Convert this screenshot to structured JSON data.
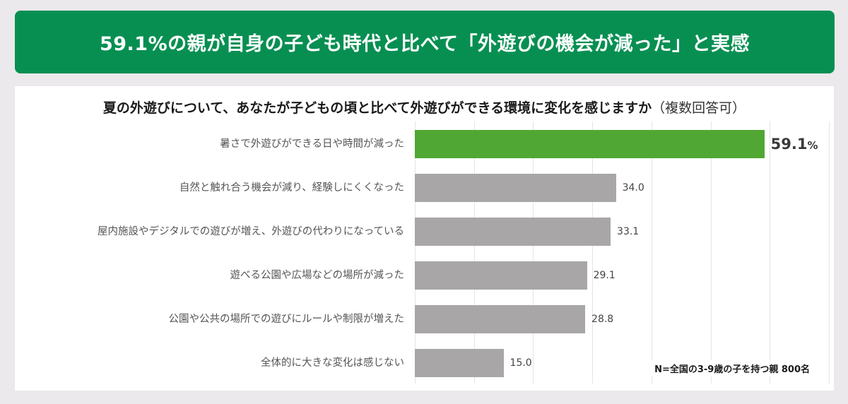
{
  "header": {
    "title": "59.1%の親が自身の子ども時代と比べて「外遊びの機会が減った」と実感",
    "background": "#078f52"
  },
  "chart_data": {
    "type": "bar",
    "orientation": "horizontal",
    "title": "夏の外遊びについて、あなたが子どもの頃と比べて外遊びができる環境に変化を感じますか",
    "title_note": "（複数回答可）",
    "categories": [
      "暑さで外遊びができる日や時間が減った",
      "自然と触れ合う機会が減り、経験しにくくなった",
      "屋内施設やデジタルでの遊びが増え、外遊びの代わりになっている",
      "遊べる公園や広場などの場所が減った",
      "公園や公共の場所での遊びにルールや制限が増えた",
      "全体的に大きな変化は感じない"
    ],
    "values": [
      59.1,
      34.0,
      33.1,
      29.1,
      28.8,
      15.0
    ],
    "value_labels": [
      "59.1",
      "34.0",
      "33.1",
      "29.1",
      "28.8",
      "15.0"
    ],
    "unit": "%",
    "xlim": [
      0,
      70
    ],
    "grid": true,
    "grid_step": 10,
    "xlabel": "",
    "ylabel": "",
    "colors": {
      "highlight": "#50a733",
      "default": "#a9a6a7"
    },
    "highlight_index": 0,
    "footnote": "N=全国の3-9歳の子を持つ親 800名"
  }
}
